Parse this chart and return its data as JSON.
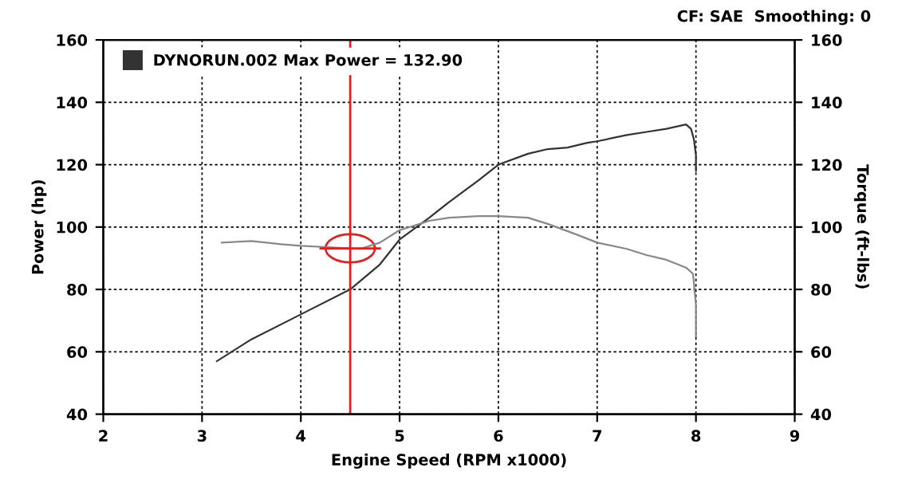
{
  "chart_data": {
    "type": "line",
    "xlabel": "Engine Speed (RPM x1000)",
    "ylabel": "Power (hp)",
    "y2label": "Torque (ft-lbs)",
    "annotations": [
      "CF: SAE  Smoothing: 0"
    ],
    "xlim": [
      2,
      9
    ],
    "xticks": [
      2,
      3,
      4,
      5,
      6,
      7,
      8,
      9
    ],
    "ylim": [
      40,
      160
    ],
    "yticks": [
      40,
      60,
      80,
      100,
      120,
      140,
      160
    ],
    "y2lim": [
      40,
      160
    ],
    "y2ticks": [
      40,
      60,
      80,
      100,
      120,
      140,
      160
    ],
    "grid": true,
    "legend": "top left",
    "ref_lines": [
      {
        "axis": "x",
        "value": 4.5,
        "color": "#e02020"
      }
    ],
    "series": [
      {
        "name": "DYNORUN.002 Max Power = 132.90",
        "color": "#333333",
        "x": [
          3.15,
          3.5,
          4.0,
          4.5,
          4.8,
          5.0,
          5.3,
          5.5,
          5.8,
          6.0,
          6.3,
          6.5,
          6.7,
          6.9,
          7.0,
          7.3,
          7.5,
          7.7,
          7.9,
          7.95,
          7.98,
          8.0,
          8.0
        ],
        "values": [
          57,
          64,
          72,
          80,
          88,
          96,
          103,
          108,
          115,
          120,
          123.5,
          125,
          125.5,
          127,
          127.5,
          129.5,
          130.5,
          131.5,
          132.9,
          131.5,
          128,
          123,
          118
        ]
      },
      {
        "axis": "y2",
        "color": "#888888",
        "x": [
          3.2,
          3.5,
          3.8,
          4.0,
          4.3,
          4.6,
          4.8,
          5.0,
          5.3,
          5.5,
          5.8,
          6.0,
          6.3,
          6.5,
          6.8,
          7.0,
          7.3,
          7.5,
          7.7,
          7.9,
          7.97,
          8.0,
          8.0
        ],
        "values": [
          95,
          95.5,
          94.5,
          94,
          93.5,
          93,
          95,
          99,
          102,
          103,
          103.5,
          103.5,
          103,
          101,
          97.5,
          95,
          93,
          91,
          89.5,
          87,
          85,
          75,
          65
        ]
      }
    ]
  }
}
